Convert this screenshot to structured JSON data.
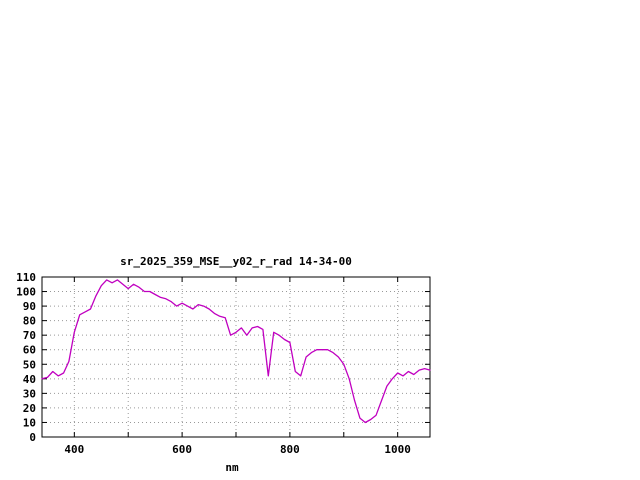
{
  "page": {
    "background": "#ffffff"
  },
  "chart_data": {
    "type": "line",
    "title": "sr_2025_359_MSE__y02_r_rad 14-34-00",
    "xlabel": "nm",
    "ylabel": "",
    "xlim": [
      340,
      1060
    ],
    "ylim": [
      0,
      110
    ],
    "xticks": [
      400,
      600,
      800,
      1000
    ],
    "xgrid": [
      400,
      500,
      600,
      700,
      800,
      900,
      1000
    ],
    "yticks": [
      0,
      10,
      20,
      30,
      40,
      50,
      60,
      70,
      80,
      90,
      100,
      110
    ],
    "grid": true,
    "legend": "none",
    "line_color": "#c000c0",
    "grid_color": "#999999",
    "border_color": "#000000",
    "x": [
      340,
      350,
      360,
      370,
      380,
      390,
      400,
      410,
      420,
      430,
      440,
      450,
      460,
      470,
      480,
      490,
      500,
      510,
      520,
      530,
      540,
      550,
      560,
      570,
      580,
      590,
      600,
      610,
      620,
      630,
      640,
      650,
      660,
      670,
      680,
      690,
      700,
      710,
      720,
      730,
      740,
      750,
      760,
      770,
      780,
      790,
      800,
      810,
      820,
      830,
      840,
      850,
      860,
      870,
      880,
      890,
      900,
      910,
      920,
      930,
      940,
      950,
      960,
      970,
      980,
      990,
      1000,
      1010,
      1020,
      1030,
      1040,
      1050,
      1060
    ],
    "y": [
      40,
      41,
      45,
      42,
      44,
      52,
      72,
      84,
      86,
      88,
      97,
      104,
      108,
      106,
      108,
      105,
      102,
      105,
      103,
      100,
      100,
      98,
      96,
      95,
      93,
      90,
      92,
      90,
      88,
      91,
      90,
      88,
      85,
      83,
      82,
      70,
      72,
      75,
      70,
      75,
      76,
      74,
      42,
      72,
      70,
      67,
      65,
      45,
      42,
      55,
      58,
      60,
      60,
      60,
      58,
      55,
      50,
      40,
      25,
      13,
      10,
      12,
      15,
      25,
      35,
      40,
      44,
      42,
      45,
      43,
      46,
      47,
      46
    ]
  }
}
